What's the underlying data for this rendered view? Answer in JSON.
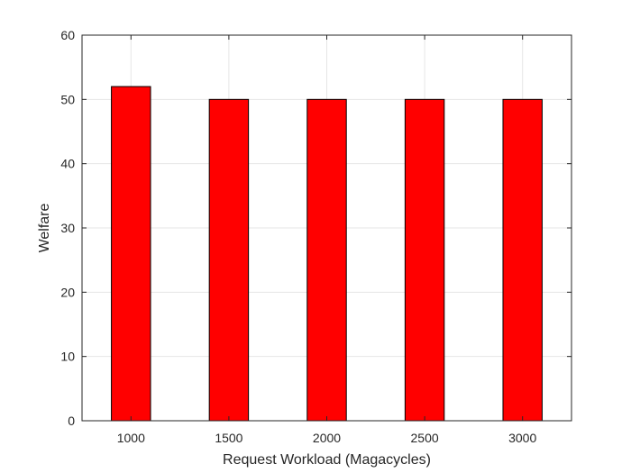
{
  "chart_data": {
    "type": "bar",
    "categories": [
      "1000",
      "1500",
      "2000",
      "2500",
      "3000"
    ],
    "values": [
      52,
      50,
      50,
      50,
      50
    ],
    "title": "",
    "xlabel": "Request Workload (Magacycles)",
    "ylabel": "Welfare",
    "ylim": [
      0,
      60
    ],
    "yticks": [
      "0",
      "10",
      "20",
      "30",
      "40",
      "50",
      "60"
    ],
    "grid": true,
    "legend": "none",
    "colors": {
      "bar_fill": "#ff0000",
      "bar_edge": "#000000",
      "grid": "#e6e6e6",
      "axis": "#262626"
    }
  }
}
